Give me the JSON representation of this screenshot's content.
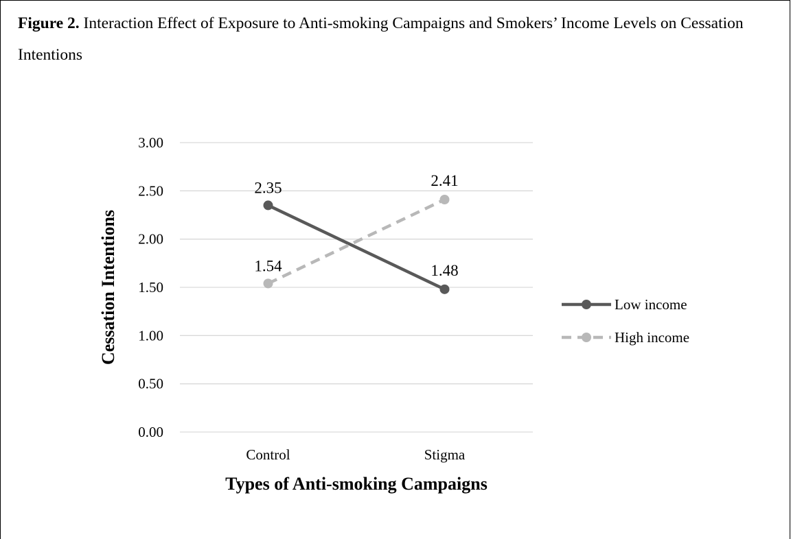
{
  "figure": {
    "label": "Figure 2.",
    "title": " Interaction Effect of Exposure to Anti-smoking Campaigns and Smokers’ Income Levels on Cessation Intentions"
  },
  "chart_data": {
    "type": "line",
    "categories": [
      "Control",
      "Stigma"
    ],
    "series": [
      {
        "name": "Low income",
        "values": [
          2.35,
          1.48
        ],
        "labels": [
          "2.35",
          "1.48"
        ],
        "color": "#595959",
        "dash": "solid"
      },
      {
        "name": "High income",
        "values": [
          1.54,
          2.41
        ],
        "labels": [
          "1.54",
          "2.41"
        ],
        "color": "#b8b8b8",
        "dash": "dashed"
      }
    ],
    "xlabel": "Types of Anti-smoking Campaigns",
    "ylabel": "Cessation Intentions",
    "ylim": [
      0,
      3
    ],
    "yticks": [
      "0.00",
      "0.50",
      "1.00",
      "1.50",
      "2.00",
      "2.50",
      "3.00"
    ],
    "grid": true,
    "legend_position": "right"
  }
}
